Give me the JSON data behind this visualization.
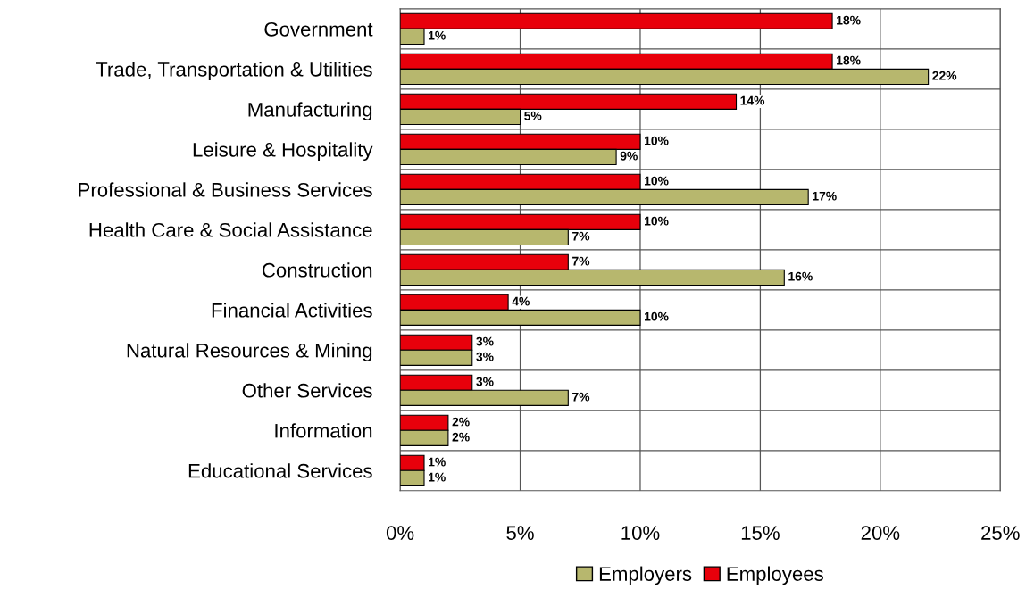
{
  "chart_data": {
    "type": "bar",
    "orientation": "horizontal",
    "categories": [
      "Government",
      "Trade, Transportation & Utilities",
      "Manufacturing",
      "Leisure & Hospitality",
      "Professional & Business Services",
      "Health Care & Social Assistance",
      "Construction",
      "Financial Activities",
      "Natural Resources & Mining",
      "Other Services",
      "Information",
      "Educational Services"
    ],
    "series": [
      {
        "name": "Employees",
        "color": "#e8000b",
        "values": [
          18,
          18,
          14,
          10,
          10,
          10,
          7,
          4.5,
          3,
          3,
          2,
          1
        ],
        "value_labels": [
          "18%",
          "18%",
          "14%",
          "10%",
          "10%",
          "10%",
          "7%",
          "4%",
          "3%",
          "3%",
          "2%",
          "1%"
        ]
      },
      {
        "name": "Employers",
        "color": "#b7b76e",
        "values": [
          1,
          22,
          5,
          9,
          17,
          7,
          16,
          10,
          3,
          7,
          2,
          1
        ],
        "value_labels": [
          "1%",
          "22%",
          "5%",
          "9%",
          "17%",
          "7%",
          "16%",
          "10%",
          "3%",
          "7%",
          "2%",
          "1%"
        ]
      }
    ],
    "xlim": [
      0,
      25
    ],
    "xticks": [
      {
        "value": 0,
        "label": "0%"
      },
      {
        "value": 5,
        "label": "5%"
      },
      {
        "value": 10,
        "label": "10%"
      },
      {
        "value": 15,
        "label": "15%"
      },
      {
        "value": 20,
        "label": "20%"
      },
      {
        "value": 25,
        "label": "25%"
      }
    ],
    "grid": true,
    "legend": "bottom"
  }
}
